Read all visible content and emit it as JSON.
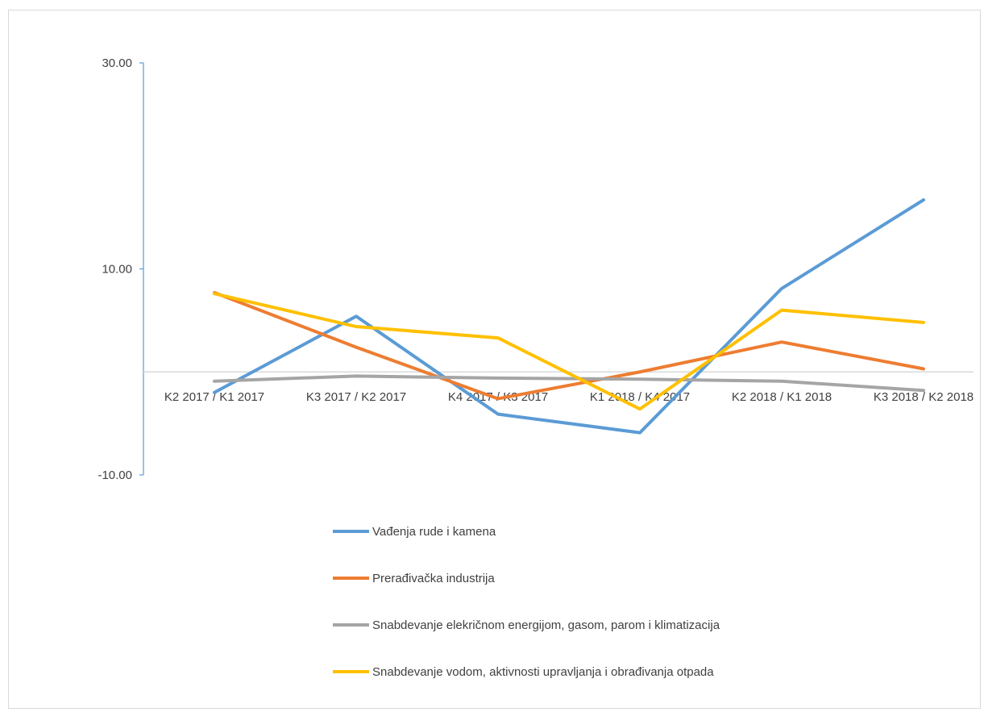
{
  "chart_data": {
    "type": "line",
    "title": "",
    "xlabel": "",
    "ylabel": "",
    "categories": [
      "K2 2017 / K1 2017",
      "K3 2017 / K2 2017",
      "K4 2017 / K3 2017",
      "K1 2018 / K4 2017",
      "K2 2018 / K1 2018",
      "K3 2018 / K2 2018"
    ],
    "y_ticks": [
      "30.00",
      "10.00",
      "-10.00"
    ],
    "y_tick_values": [
      30,
      10,
      -10
    ],
    "ylim": [
      -10,
      30
    ],
    "grid": false,
    "legend_position": "bottom",
    "series": [
      {
        "name": "Vađenja rude i kamena",
        "color": "#5b9bd5",
        "values": [
          -2.0,
          5.4,
          -4.1,
          -5.9,
          8.1,
          16.7
        ]
      },
      {
        "name": "Prerađivačka industrija",
        "color": "#ed7d31",
        "values": [
          7.7,
          2.4,
          -2.6,
          0.0,
          2.9,
          0.3
        ]
      },
      {
        "name": "Snabdevanje elekričnom energijom, gasom, parom i klimatizacija",
        "color": "#a5a5a5",
        "values": [
          -0.9,
          -0.4,
          -0.6,
          -0.7,
          -0.9,
          -1.8
        ]
      },
      {
        "name": "Snabdevanje vodom, aktivnosti upravljanja i obrađivanja  otpada",
        "color": "#ffc000",
        "values": [
          7.6,
          4.4,
          3.3,
          -3.6,
          6.0,
          4.8
        ]
      }
    ]
  }
}
